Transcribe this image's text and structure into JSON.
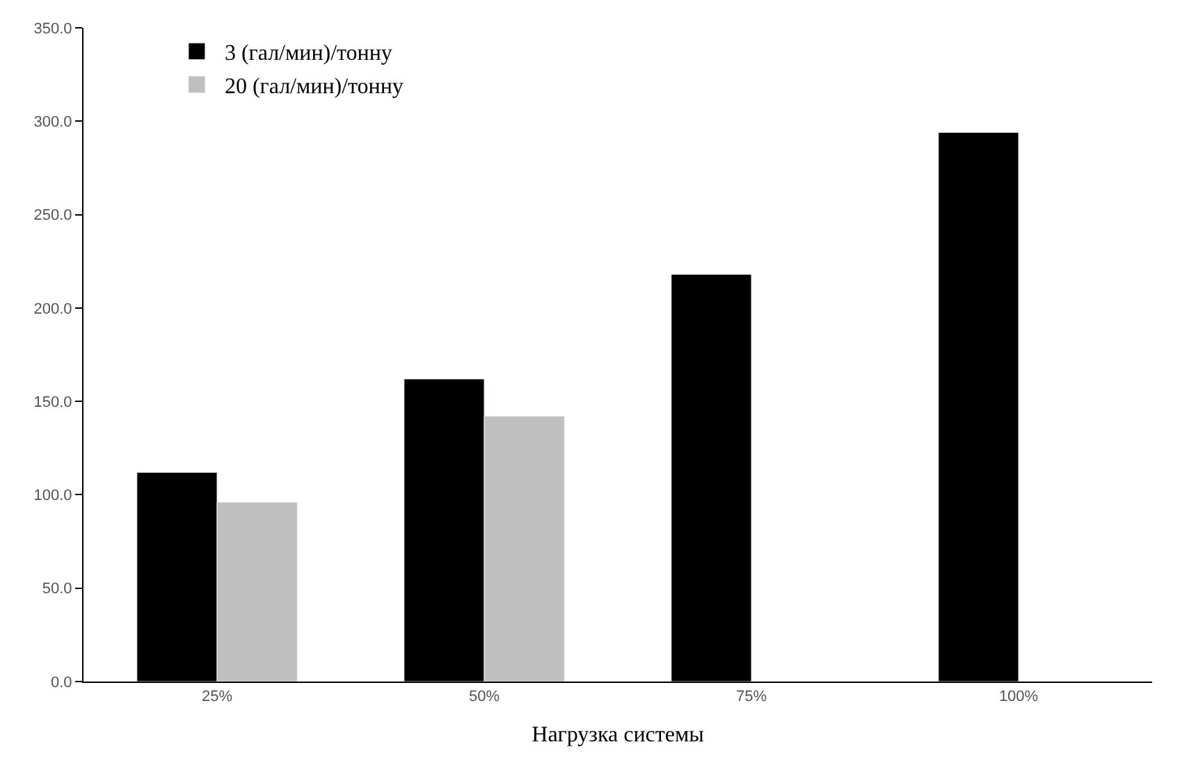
{
  "chart_data": {
    "type": "bar",
    "xlabel": "Нагрузка системы",
    "categories": [
      "25%",
      "50%",
      "75%",
      "100%"
    ],
    "series": [
      {
        "name": "3 (гал/мин)/тонну",
        "color": "#000000",
        "values": [
          112,
          162,
          218,
          294
        ]
      },
      {
        "name": "20 (гал/мин)/тонну",
        "color": "#bfbfbf",
        "values": [
          96,
          142,
          null,
          null
        ]
      }
    ],
    "ylim": [
      0,
      350
    ],
    "yticks": [
      {
        "value": 0,
        "label": "0.0"
      },
      {
        "value": 50,
        "label": "50.0"
      },
      {
        "value": 100,
        "label": "100.0"
      },
      {
        "value": 150,
        "label": "150.0"
      },
      {
        "value": 200,
        "label": "200.0"
      },
      {
        "value": 250,
        "label": "250.0"
      },
      {
        "value": 300,
        "label": "300.0"
      },
      {
        "value": 350,
        "label": "350.0"
      }
    ],
    "legend": "top left"
  }
}
